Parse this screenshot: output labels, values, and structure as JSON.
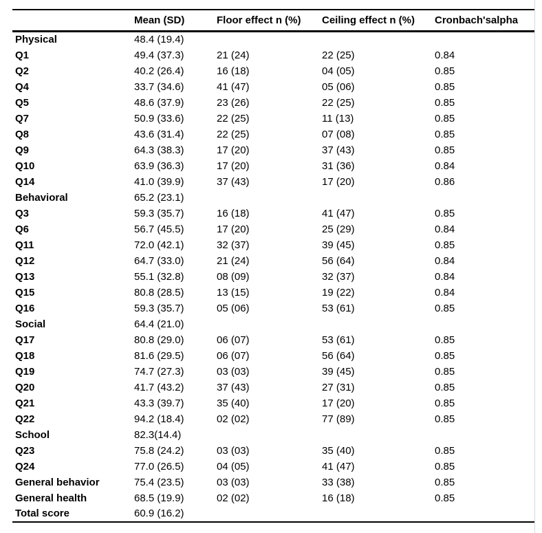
{
  "page": {
    "background_color": "#ffffff",
    "rule_color": "#000000",
    "right_edge_line_color": "#d9d9d9"
  },
  "table": {
    "columns": [
      "",
      "Mean (SD)",
      "Floor effect n (%)",
      "Ceiling effect n (%)",
      "Cronbach'salpha"
    ],
    "rows": [
      {
        "label": "Physical",
        "mean_sd": "48.4 (19.4)",
        "floor": "",
        "ceiling": "",
        "alpha": ""
      },
      {
        "label": "Q1",
        "mean_sd": "49.4 (37.3)",
        "floor": "21 (24)",
        "ceiling": "22 (25)",
        "alpha": "0.84"
      },
      {
        "label": "Q2",
        "mean_sd": "40.2 (26.4)",
        "floor": "16 (18)",
        "ceiling": "04 (05)",
        "alpha": "0.85"
      },
      {
        "label": "Q4",
        "mean_sd": "33.7 (34.6)",
        "floor": "41 (47)",
        "ceiling": "05 (06)",
        "alpha": "0.85"
      },
      {
        "label": "Q5",
        "mean_sd": "48.6 (37.9)",
        "floor": "23 (26)",
        "ceiling": "22 (25)",
        "alpha": "0.85"
      },
      {
        "label": "Q7",
        "mean_sd": "50.9 (33.6)",
        "floor": "22 (25)",
        "ceiling": "11 (13)",
        "alpha": "0.85"
      },
      {
        "label": "Q8",
        "mean_sd": "43.6 (31.4)",
        "floor": "22 (25)",
        "ceiling": "07 (08)",
        "alpha": "0.85"
      },
      {
        "label": "Q9",
        "mean_sd": "64.3 (38.3)",
        "floor": "17 (20)",
        "ceiling": "37 (43)",
        "alpha": "0.85"
      },
      {
        "label": "Q10",
        "mean_sd": "63.9 (36.3)",
        "floor": "17 (20)",
        "ceiling": "31 (36)",
        "alpha": "0.84"
      },
      {
        "label": "Q14",
        "mean_sd": "41.0 (39.9)",
        "floor": "37 (43)",
        "ceiling": "17 (20)",
        "alpha": "0.86"
      },
      {
        "label": "Behavioral",
        "mean_sd": "65.2 (23.1)",
        "floor": "",
        "ceiling": "",
        "alpha": ""
      },
      {
        "label": "Q3",
        "mean_sd": "59.3 (35.7)",
        "floor": "16 (18)",
        "ceiling": "41 (47)",
        "alpha": "0.85"
      },
      {
        "label": "Q6",
        "mean_sd": "56.7 (45.5)",
        "floor": "17 (20)",
        "ceiling": "25 (29)",
        "alpha": "0.84"
      },
      {
        "label": "Q11",
        "mean_sd": "72.0 (42.1)",
        "floor": "32 (37)",
        "ceiling": "39 (45)",
        "alpha": "0.85"
      },
      {
        "label": "Q12",
        "mean_sd": "64.7 (33.0)",
        "floor": "21 (24)",
        "ceiling": "56 (64)",
        "alpha": "0.84"
      },
      {
        "label": "Q13",
        "mean_sd": "55.1 (32.8)",
        "floor": "08 (09)",
        "ceiling": "32 (37)",
        "alpha": "0.84"
      },
      {
        "label": "Q15",
        "mean_sd": "80.8 (28.5)",
        "floor": "13 (15)",
        "ceiling": "19 (22)",
        "alpha": "0.84"
      },
      {
        "label": "Q16",
        "mean_sd": "59.3 (35.7)",
        "floor": "05 (06)",
        "ceiling": "53 (61)",
        "alpha": "0.85"
      },
      {
        "label": "Social",
        "mean_sd": "64.4 (21.0)",
        "floor": "",
        "ceiling": "",
        "alpha": ""
      },
      {
        "label": "Q17",
        "mean_sd": "80.8 (29.0)",
        "floor": "06 (07)",
        "ceiling": "53 (61)",
        "alpha": "0.85"
      },
      {
        "label": "Q18",
        "mean_sd": "81.6 (29.5)",
        "floor": "06 (07)",
        "ceiling": "56 (64)",
        "alpha": "0.85"
      },
      {
        "label": "Q19",
        "mean_sd": "74.7 (27.3)",
        "floor": "03 (03)",
        "ceiling": "39 (45)",
        "alpha": "0.85"
      },
      {
        "label": "Q20",
        "mean_sd": "41.7 (43.2)",
        "floor": "37 (43)",
        "ceiling": "27 (31)",
        "alpha": "0.85"
      },
      {
        "label": "Q21",
        "mean_sd": "43.3 (39.7)",
        "floor": "35 (40)",
        "ceiling": "17 (20)",
        "alpha": "0.85"
      },
      {
        "label": "Q22",
        "mean_sd": "94.2 (18.4)",
        "floor": "02 (02)",
        "ceiling": "77 (89)",
        "alpha": "0.85"
      },
      {
        "label": "School",
        "mean_sd": "82.3(14.4)",
        "floor": "",
        "ceiling": "",
        "alpha": ""
      },
      {
        "label": "Q23",
        "mean_sd": "75.8 (24.2)",
        "floor": "03 (03)",
        "ceiling": "35 (40)",
        "alpha": "0.85"
      },
      {
        "label": "Q24",
        "mean_sd": "77.0 (26.5)",
        "floor": "04 (05)",
        "ceiling": "41 (47)",
        "alpha": "0.85"
      },
      {
        "label": "General behavior",
        "mean_sd": "75.4 (23.5)",
        "floor": "03 (03)",
        "ceiling": "33 (38)",
        "alpha": "0.85"
      },
      {
        "label": "General health",
        "mean_sd": "68.5 (19.9)",
        "floor": "02 (02)",
        "ceiling": "16 (18)",
        "alpha": "0.85"
      },
      {
        "label": "Total score",
        "mean_sd": "60.9 (16.2)",
        "floor": "",
        "ceiling": "",
        "alpha": ""
      }
    ]
  }
}
